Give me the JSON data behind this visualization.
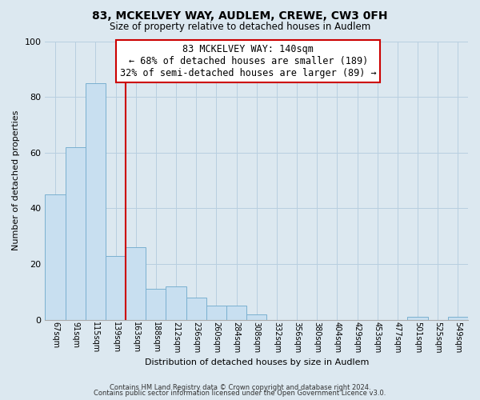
{
  "title": "83, MCKELVEY WAY, AUDLEM, CREWE, CW3 0FH",
  "subtitle": "Size of property relative to detached houses in Audlem",
  "xlabel": "Distribution of detached houses by size in Audlem",
  "ylabel": "Number of detached properties",
  "bin_labels": [
    "67sqm",
    "91sqm",
    "115sqm",
    "139sqm",
    "163sqm",
    "188sqm",
    "212sqm",
    "236sqm",
    "260sqm",
    "284sqm",
    "308sqm",
    "332sqm",
    "356sqm",
    "380sqm",
    "404sqm",
    "429sqm",
    "453sqm",
    "477sqm",
    "501sqm",
    "525sqm",
    "549sqm"
  ],
  "bar_values": [
    45,
    62,
    85,
    23,
    26,
    11,
    12,
    8,
    5,
    5,
    2,
    0,
    0,
    0,
    0,
    0,
    0,
    0,
    1,
    0,
    1
  ],
  "bar_color": "#c8dff0",
  "bar_edge_color": "#7ab0d0",
  "highlight_line_index": 3,
  "highlight_line_color": "#cc0000",
  "annotation_box_text": "83 MCKELVEY WAY: 140sqm\n← 68% of detached houses are smaller (189)\n32% of semi-detached houses are larger (89) →",
  "annotation_box_color": "#cc0000",
  "ylim": [
    0,
    100
  ],
  "yticks": [
    0,
    20,
    40,
    60,
    80,
    100
  ],
  "footer_line1": "Contains HM Land Registry data © Crown copyright and database right 2024.",
  "footer_line2": "Contains public sector information licensed under the Open Government Licence v3.0.",
  "background_color": "#dce8f0",
  "plot_bg_color": "#dce8f0"
}
